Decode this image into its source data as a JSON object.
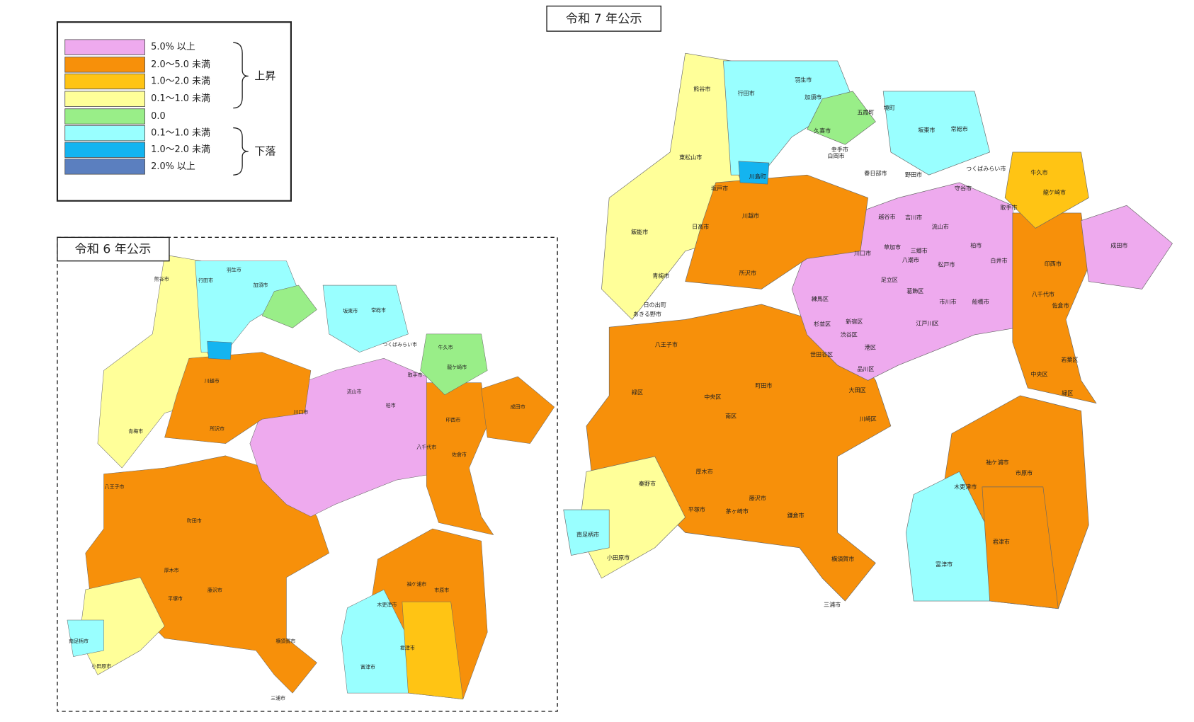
{
  "legend": {
    "items": [
      {
        "label": "5.0% 以上",
        "color": "#eeaaee"
      },
      {
        "label": "2.0～5.0 未満",
        "color": "#f7900a"
      },
      {
        "label": "1.0～2.0 未満",
        "color": "#ffc414"
      },
      {
        "label": "0.1～1.0 未満",
        "color": "#ffff99"
      },
      {
        "label": "0.0",
        "color": "#99ee88"
      },
      {
        "label": "0.1～1.0 未満",
        "color": "#99ffff"
      },
      {
        "label": "1.0～2.0 未満",
        "color": "#14b4f0"
      },
      {
        "label": "2.0% 以上",
        "color": "#5b7fbf"
      }
    ],
    "groups": [
      "上昇",
      "下落"
    ]
  },
  "maps": [
    {
      "title": "令和 7 年公示",
      "regions": [
        "成田市",
        "羽生市",
        "加須市",
        "熊谷市",
        "行田市",
        "坂東市",
        "常総市",
        "つくばみらい市",
        "牛久市",
        "龍ケ崎市",
        "取手市",
        "守谷市",
        "野田市",
        "柏市",
        "流山市",
        "松戸市",
        "白井市",
        "印西市",
        "八千代市",
        "佐倉市",
        "船橋市",
        "市川市",
        "中央区",
        "緑区",
        "若葉区",
        "市原市",
        "袖ケ浦市",
        "木更津市",
        "君津市",
        "富津市",
        "八王子市",
        "町田市",
        "緑区",
        "中央区",
        "南区",
        "厚木市",
        "平塚市",
        "藤沢市",
        "茅ヶ崎市",
        "鎌倉市",
        "横須賀市",
        "三浦市",
        "小田原市",
        "南足柄市",
        "秦野市",
        "川越市",
        "所沢市",
        "川口市",
        "足立区",
        "葛飾区",
        "江戸川区",
        "大田区",
        "品川区",
        "世田谷区",
        "練馬区",
        "杉並区",
        "新宿区",
        "渋谷区",
        "港区",
        "川崎区",
        "青梅市",
        "日の出町",
        "あきる野市",
        "飯能市",
        "日高市",
        "坂戸市",
        "川島町",
        "越谷市",
        "草加市",
        "八潮市",
        "三郷市",
        "吉川市",
        "春日部市",
        "白岡市",
        "久喜市",
        "幸手市",
        "五霞町",
        "境町",
        "東松山市"
      ]
    },
    {
      "title": "令和 6 年公示",
      "regions": [
        "熊谷市",
        "行田市",
        "羽生市",
        "加須市",
        "坂東市",
        "常総市",
        "つくばみらい市",
        "牛久市",
        "龍ケ崎市",
        "取手市",
        "成田市",
        "柏市",
        "流山市",
        "八王子市",
        "町田市",
        "厚木市",
        "平塚市",
        "藤沢市",
        "横須賀市",
        "三浦市",
        "小田原市",
        "南足柄市",
        "君津市",
        "富津市",
        "木更津市",
        "市原市",
        "袖ケ浦市",
        "印西市",
        "佐倉市",
        "八千代市",
        "川口市",
        "川越市",
        "所沢市",
        "青梅市"
      ]
    }
  ]
}
